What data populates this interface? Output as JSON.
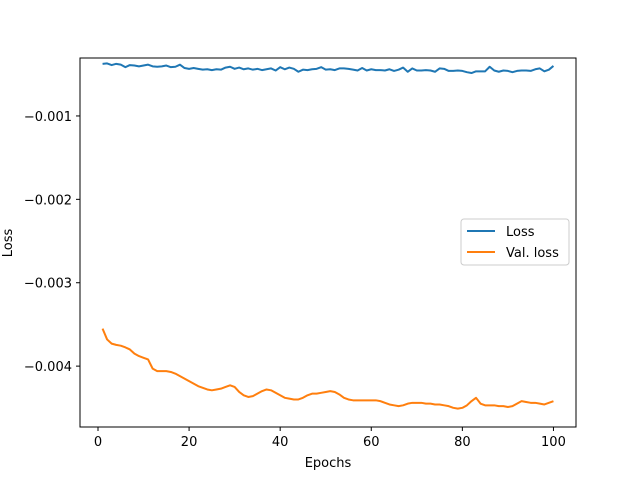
{
  "chart_data": {
    "type": "line",
    "title": "",
    "xlabel": "Epochs",
    "ylabel": "Loss",
    "xlim": [
      -3.95,
      104.95
    ],
    "ylim": [
      -0.00473,
      -0.000305
    ],
    "xticks": [
      0,
      20,
      40,
      60,
      80,
      100
    ],
    "xtick_labels": [
      "0",
      "20",
      "40",
      "60",
      "80",
      "100"
    ],
    "yticks": [
      -0.001,
      -0.002,
      -0.003,
      -0.004
    ],
    "ytick_labels": [
      "−0.001",
      "−0.002",
      "−0.003",
      "−0.004"
    ],
    "grid": false,
    "legend_position": "center-right",
    "x": [
      1,
      2,
      3,
      4,
      5,
      6,
      7,
      8,
      9,
      10,
      11,
      12,
      13,
      14,
      15,
      16,
      17,
      18,
      19,
      20,
      21,
      22,
      23,
      24,
      25,
      26,
      27,
      28,
      29,
      30,
      31,
      32,
      33,
      34,
      35,
      36,
      37,
      38,
      39,
      40,
      41,
      42,
      43,
      44,
      45,
      46,
      47,
      48,
      49,
      50,
      51,
      52,
      53,
      54,
      55,
      56,
      57,
      58,
      59,
      60,
      61,
      62,
      63,
      64,
      65,
      66,
      67,
      68,
      69,
      70,
      71,
      72,
      73,
      74,
      75,
      76,
      77,
      78,
      79,
      80,
      81,
      82,
      83,
      84,
      85,
      86,
      87,
      88,
      89,
      90,
      91,
      92,
      93,
      94,
      95,
      96,
      97,
      98,
      99,
      100
    ],
    "series": [
      {
        "name": "Loss",
        "color": "#1f77b4",
        "values": [
          -0.000375,
          -0.00037,
          -0.00039,
          -0.000375,
          -0.000385,
          -0.000415,
          -0.00039,
          -0.000395,
          -0.000405,
          -0.000395,
          -0.000385,
          -0.000405,
          -0.00041,
          -0.000405,
          -0.000395,
          -0.000415,
          -0.00041,
          -0.000385,
          -0.000425,
          -0.000435,
          -0.000425,
          -0.000435,
          -0.000445,
          -0.00044,
          -0.00045,
          -0.00044,
          -0.000445,
          -0.00042,
          -0.00041,
          -0.000435,
          -0.00042,
          -0.00044,
          -0.00043,
          -0.000445,
          -0.000435,
          -0.00045,
          -0.00044,
          -0.00043,
          -0.000455,
          -0.000415,
          -0.00044,
          -0.00042,
          -0.000435,
          -0.00047,
          -0.000445,
          -0.00045,
          -0.00044,
          -0.000435,
          -0.000415,
          -0.000445,
          -0.00044,
          -0.00045,
          -0.00043,
          -0.00043,
          -0.000435,
          -0.000445,
          -0.000455,
          -0.000425,
          -0.000455,
          -0.00044,
          -0.00045,
          -0.00045,
          -0.000455,
          -0.00044,
          -0.00046,
          -0.000445,
          -0.00042,
          -0.00047,
          -0.00043,
          -0.000455,
          -0.000455,
          -0.00045,
          -0.000455,
          -0.00047,
          -0.00043,
          -0.000435,
          -0.00046,
          -0.00046,
          -0.000455,
          -0.00046,
          -0.000475,
          -0.000485,
          -0.000465,
          -0.000465,
          -0.000465,
          -0.00041,
          -0.000455,
          -0.00047,
          -0.000455,
          -0.00046,
          -0.000475,
          -0.00046,
          -0.000455,
          -0.000455,
          -0.00046,
          -0.00044,
          -0.00043,
          -0.000465,
          -0.000445,
          -0.0004
        ]
      },
      {
        "name": "Val. loss",
        "color": "#ff7f0e",
        "values": [
          -0.00355,
          -0.00368,
          -0.00373,
          -0.003745,
          -0.003755,
          -0.003775,
          -0.0038,
          -0.00385,
          -0.00388,
          -0.0039,
          -0.00392,
          -0.00403,
          -0.00406,
          -0.00406,
          -0.00406,
          -0.00407,
          -0.00409,
          -0.00412,
          -0.00415,
          -0.00418,
          -0.00421,
          -0.00424,
          -0.00426,
          -0.00428,
          -0.00429,
          -0.00428,
          -0.00427,
          -0.00425,
          -0.00423,
          -0.00425,
          -0.00431,
          -0.00435,
          -0.00437,
          -0.00436,
          -0.00433,
          -0.0043,
          -0.00428,
          -0.00429,
          -0.00432,
          -0.00435,
          -0.00438,
          -0.00439,
          -0.0044,
          -0.0044,
          -0.00438,
          -0.00435,
          -0.00433,
          -0.00433,
          -0.00432,
          -0.00431,
          -0.0043,
          -0.00431,
          -0.00434,
          -0.00438,
          -0.0044,
          -0.00441,
          -0.00441,
          -0.00441,
          -0.00441,
          -0.00441,
          -0.00441,
          -0.00442,
          -0.00444,
          -0.00446,
          -0.00447,
          -0.00448,
          -0.00447,
          -0.00445,
          -0.00444,
          -0.00444,
          -0.00444,
          -0.00445,
          -0.00445,
          -0.00446,
          -0.00446,
          -0.00447,
          -0.00448,
          -0.0045,
          -0.00451,
          -0.0045,
          -0.00447,
          -0.00442,
          -0.00438,
          -0.00445,
          -0.00447,
          -0.00447,
          -0.00447,
          -0.00448,
          -0.00448,
          -0.00449,
          -0.00448,
          -0.00445,
          -0.00442,
          -0.00443,
          -0.00444,
          -0.00444,
          -0.00445,
          -0.00446,
          -0.00444,
          -0.00442
        ]
      }
    ]
  }
}
